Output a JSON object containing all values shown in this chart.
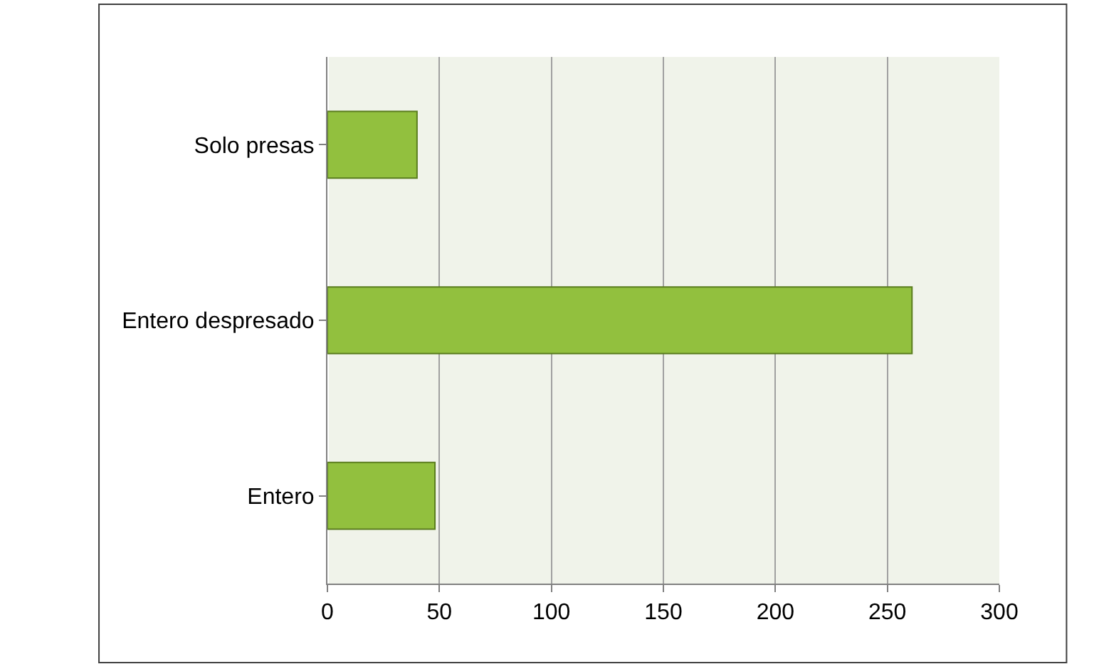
{
  "chart_data": {
    "type": "bar",
    "orientation": "horizontal",
    "categories": [
      "Solo presas",
      "Entero despresado",
      "Entero"
    ],
    "values": [
      40,
      261,
      48
    ],
    "color": "#92c03e",
    "xlim": [
      0,
      300
    ],
    "xticks": [
      0,
      50,
      100,
      150,
      200,
      250,
      300
    ],
    "grid": "x"
  }
}
